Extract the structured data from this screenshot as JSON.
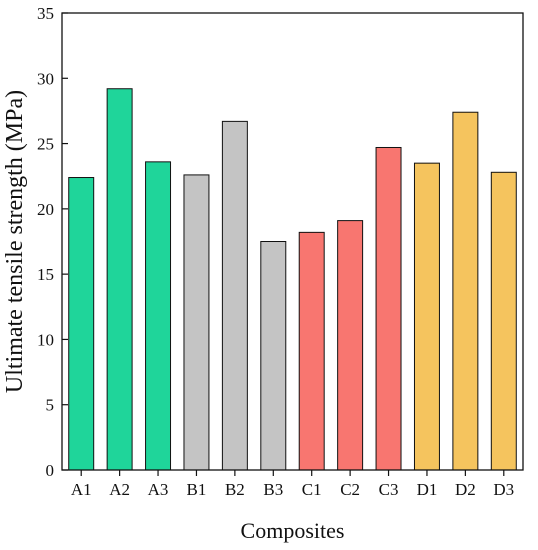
{
  "chart_data": {
    "type": "bar",
    "ylabel": "Ultimate tensile strength (MPa)",
    "xlabel": "Composites",
    "ylim": [
      0,
      35
    ],
    "y_ticks": [
      0,
      5,
      10,
      15,
      20,
      25,
      30,
      35
    ],
    "grid": false,
    "categories": [
      "A1",
      "A2",
      "A3",
      "B1",
      "B2",
      "B3",
      "C1",
      "C2",
      "C3",
      "D1",
      "D2",
      "D3"
    ],
    "values": [
      22.4,
      29.2,
      23.6,
      22.6,
      26.7,
      17.5,
      18.2,
      19.1,
      24.7,
      23.5,
      27.4,
      22.8
    ],
    "colors": [
      "#1fd59a",
      "#1fd59a",
      "#1fd59a",
      "#c4c4c4",
      "#c4c4c4",
      "#c4c4c4",
      "#f87670",
      "#f87670",
      "#f87670",
      "#f5c45e",
      "#f5c45e",
      "#f5c45e"
    ]
  }
}
